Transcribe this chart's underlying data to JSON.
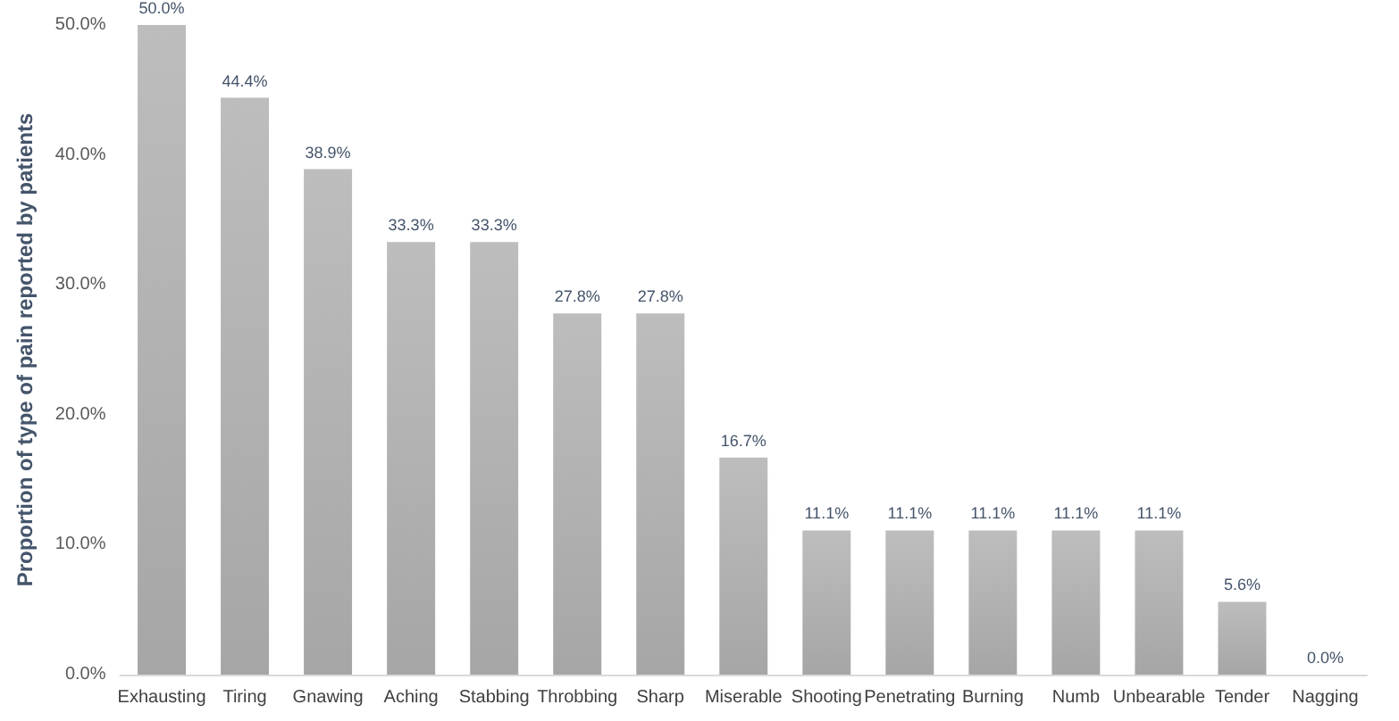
{
  "chart_data": {
    "type": "bar",
    "ylabel": "Proportion of type of pain reported by patients",
    "categories": [
      "Exhausting",
      "Tiring",
      "Gnawing",
      "Aching",
      "Stabbing",
      "Throbbing",
      "Sharp",
      "Miserable",
      "Shooting",
      "Penetrating",
      "Burning",
      "Numb",
      "Unbearable",
      "Tender",
      "Nagging"
    ],
    "values": [
      50.0,
      44.4,
      38.9,
      33.3,
      33.3,
      27.8,
      27.8,
      16.7,
      11.1,
      11.1,
      11.1,
      11.1,
      11.1,
      5.6,
      0.0
    ],
    "value_labels": [
      "50.0%",
      "44.4%",
      "38.9%",
      "33.3%",
      "33.3%",
      "27.8%",
      "27.8%",
      "16.7%",
      "11.1%",
      "11.1%",
      "11.1%",
      "11.1%",
      "11.1%",
      "5.6%",
      "0.0%"
    ],
    "color": "#bdbdbd",
    "ylim": [
      0,
      50
    ],
    "yticks": [
      {
        "value": 0,
        "label": "0.0%"
      },
      {
        "value": 10,
        "label": "10.0%"
      },
      {
        "value": 20,
        "label": "20.0%"
      },
      {
        "value": 30,
        "label": "30.0%"
      },
      {
        "value": 40,
        "label": "40.0%"
      },
      {
        "value": 50,
        "label": "50.0%"
      }
    ],
    "grid": false
  }
}
